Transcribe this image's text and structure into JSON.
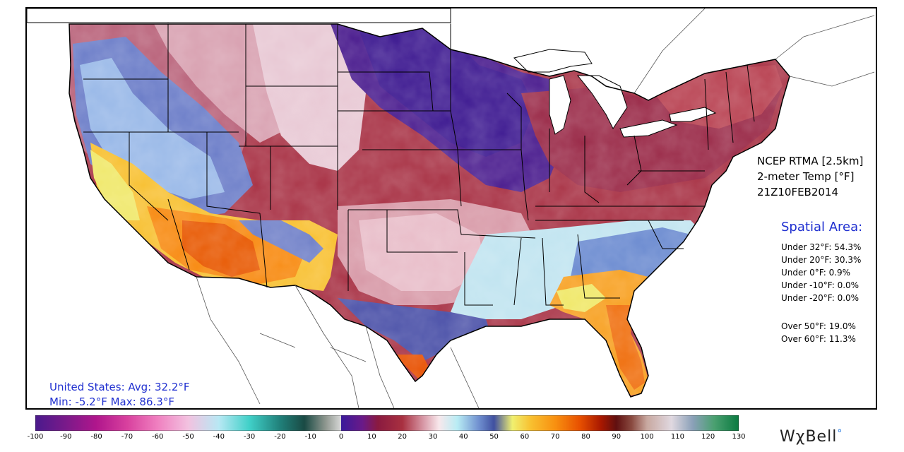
{
  "product": {
    "lines": [
      "NCEP RTMA [2.5km]",
      "2-meter Temp [°F]",
      "21Z10FEB2014"
    ]
  },
  "spatial": {
    "title": "Spatial Area:",
    "stats": [
      "Under 32°F: 54.3%",
      "Under 20°F: 30.3%",
      "Under 0°F: 0.9%",
      "Under -10°F: 0.0%",
      "Under -20°F: 0.0%",
      "Over 50°F: 19.0%",
      "Over 60°F: 11.3%"
    ]
  },
  "summary": {
    "line1": "United States: Avg:  32.2°F",
    "line2": "Min:  -5.2°F Max:  86.3°F"
  },
  "colorbar": {
    "ticks": [
      "-100",
      "-90",
      "-80",
      "-70",
      "-60",
      "-50",
      "-40",
      "-30",
      "-20",
      "-10",
      "0",
      "10",
      "20",
      "30",
      "40",
      "50",
      "60",
      "70",
      "80",
      "90",
      "100",
      "110",
      "120",
      "130"
    ],
    "min": -100,
    "max": 130,
    "stops": [
      {
        "t": -100,
        "color": "#4a1a8c"
      },
      {
        "t": -90,
        "color": "#7a1a8a"
      },
      {
        "t": -80,
        "color": "#b0168c"
      },
      {
        "t": -70,
        "color": "#d8409e"
      },
      {
        "t": -60,
        "color": "#f080c0"
      },
      {
        "t": -50,
        "color": "#f2c2e0"
      },
      {
        "t": -40,
        "color": "#b8e8f4"
      },
      {
        "t": -30,
        "color": "#40d0c8"
      },
      {
        "t": -20,
        "color": "#20807a"
      },
      {
        "t": -12,
        "color": "#1a4a44"
      },
      {
        "t": -5,
        "color": "#909890"
      },
      {
        "t": 0,
        "color": "#d8d8d8"
      },
      {
        "t": 0.01,
        "color": "#3a1a9a"
      },
      {
        "t": 7,
        "color": "#6a1a88"
      },
      {
        "t": 12,
        "color": "#8a1a40"
      },
      {
        "t": 20,
        "color": "#a83040"
      },
      {
        "t": 27,
        "color": "#d89aa8"
      },
      {
        "t": 32,
        "color": "#f8e8ec"
      },
      {
        "t": 38,
        "color": "#b8ecf4"
      },
      {
        "t": 45,
        "color": "#7090d0"
      },
      {
        "t": 50,
        "color": "#4050a0"
      },
      {
        "t": 56,
        "color": "#f0f070"
      },
      {
        "t": 62,
        "color": "#f8c030"
      },
      {
        "t": 70,
        "color": "#f89010"
      },
      {
        "t": 78,
        "color": "#e85000"
      },
      {
        "t": 85,
        "color": "#a81800"
      },
      {
        "t": 90,
        "color": "#601010"
      },
      {
        "t": 95,
        "color": "#8a4a40"
      },
      {
        "t": 100,
        "color": "#c8a8a0"
      },
      {
        "t": 108,
        "color": "#e0d8e0"
      },
      {
        "t": 115,
        "color": "#8aa0b8"
      },
      {
        "t": 122,
        "color": "#4aa070"
      },
      {
        "t": 130,
        "color": "#0a7a40"
      }
    ]
  },
  "brand": {
    "name": "WχBell",
    "mark": "°"
  }
}
